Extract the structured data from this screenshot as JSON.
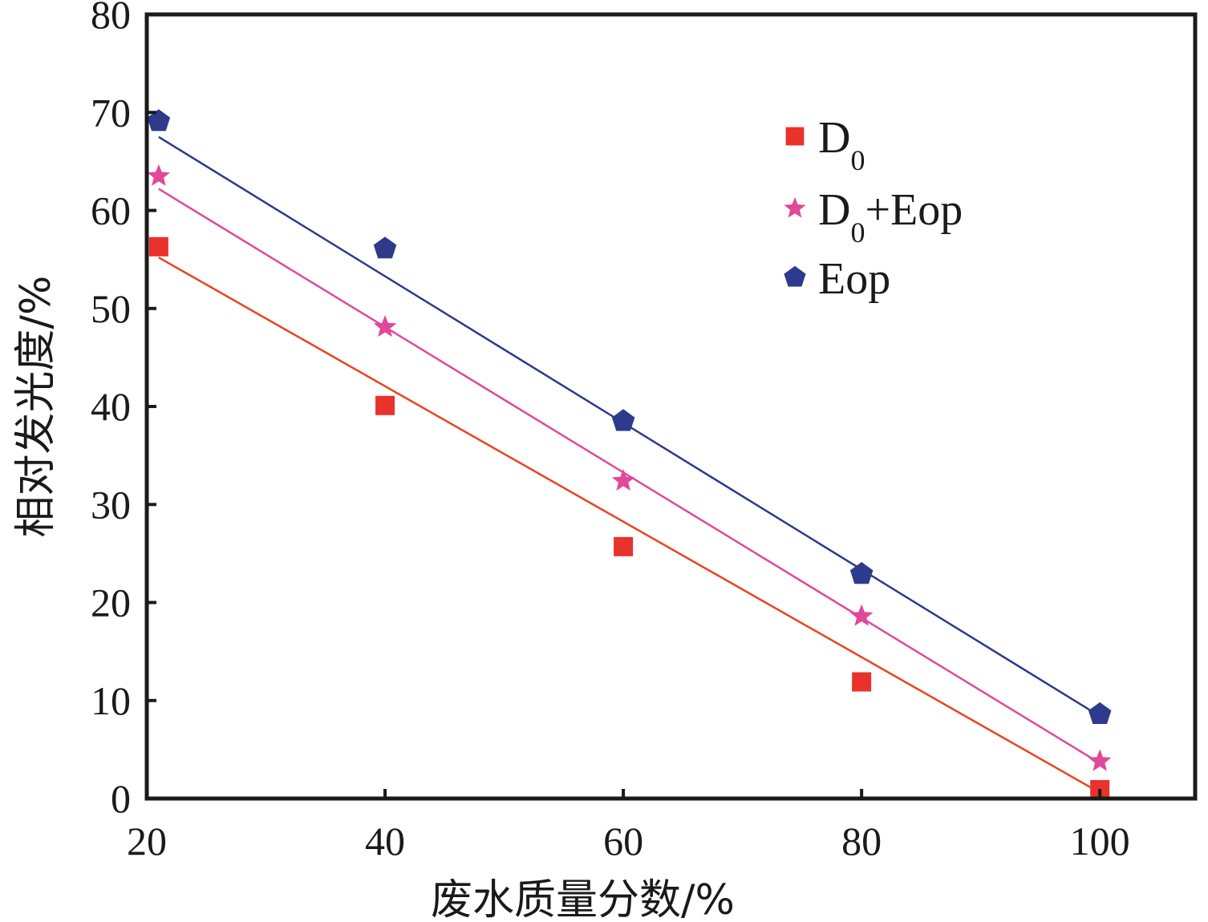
{
  "chart_data": {
    "type": "scatter",
    "xlabel": "废水质量分数/%",
    "ylabel": "相对发光度/%",
    "xlim": [
      20,
      108
    ],
    "ylim": [
      0,
      80
    ],
    "xticks": [
      20,
      40,
      60,
      80,
      100
    ],
    "yticks": [
      0,
      10,
      20,
      30,
      40,
      50,
      60,
      70,
      80
    ],
    "grid": false,
    "legend_position": "top-right",
    "series": [
      {
        "name": "D",
        "name_sub": "0",
        "marker": "square",
        "color": "#e8322b",
        "line_color": "#e8441e",
        "x": [
          21,
          40,
          60,
          80,
          100
        ],
        "y": [
          56.3,
          40.1,
          25.7,
          11.9,
          0.9
        ],
        "fit": {
          "x": [
            21,
            100
          ],
          "y": [
            55.2,
            0.6
          ]
        }
      },
      {
        "name": "D",
        "name_sub": "0",
        "name_suffix": "+Eop",
        "marker": "star",
        "color": "#e0489a",
        "line_color": "#e0489a",
        "x": [
          21,
          40,
          60,
          80,
          100
        ],
        "y": [
          63.5,
          48.1,
          32.4,
          18.6,
          3.8
        ],
        "fit": {
          "x": [
            21,
            100
          ],
          "y": [
            62.2,
            3.6
          ]
        }
      },
      {
        "name": "Eop",
        "marker": "pentagon",
        "color": "#2e3a8c",
        "line_color": "#2e3a8c",
        "x": [
          21,
          40,
          60,
          80,
          100
        ],
        "y": [
          69.1,
          56.1,
          38.5,
          22.9,
          8.6
        ],
        "fit": {
          "x": [
            21,
            100
          ],
          "y": [
            67.5,
            8.4
          ]
        }
      }
    ]
  }
}
